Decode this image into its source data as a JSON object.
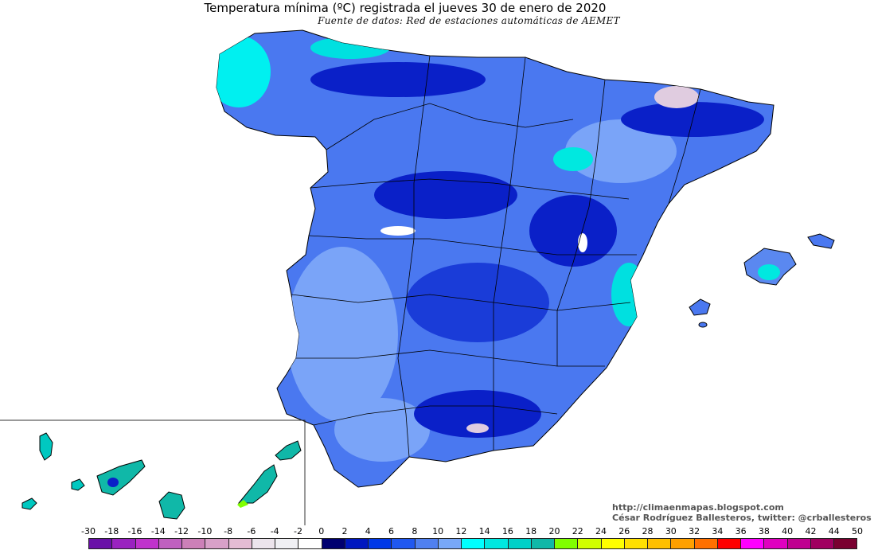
{
  "map": {
    "title": "Temperatura mínima (ºC) registrada el jueves 30 de enero de 2020",
    "subtitle": "Fuente de datos: Red de estaciones automáticas de AEMET",
    "credits": {
      "url": "http://climaenmapas.blogspot.com",
      "author": "César Rodríguez Ballesteros, twitter: @crballesteros"
    },
    "legend": {
      "unit": "ºC",
      "labels": [
        "-30",
        "-18",
        "-16",
        "-14",
        "-12",
        "-10",
        "-8",
        "-6",
        "-4",
        "-2",
        "0",
        "2",
        "4",
        "6",
        "8",
        "10",
        "12",
        "14",
        "16",
        "18",
        "20",
        "22",
        "24",
        "26",
        "28",
        "30",
        "32",
        "34",
        "36",
        "38",
        "40",
        "42",
        "44",
        "50"
      ],
      "colors": [
        "#6a10a8",
        "#9a22c0",
        "#c033cc",
        "#c060c0",
        "#cc80b8",
        "#d8a0c8",
        "#e4bcd4",
        "#ece4ec",
        "#f0f0f4",
        "#ffffff",
        "#000070",
        "#0018c0",
        "#0038e8",
        "#2058f0",
        "#5080f0",
        "#78a8f8",
        "#00ffff",
        "#00e8e0",
        "#00d0c8",
        "#10b8a8",
        "#80ff00",
        "#d0ff00",
        "#ffff00",
        "#ffe000",
        "#ffc000",
        "#ffa000",
        "#ff7000",
        "#ff0000",
        "#ff00ff",
        "#e000c0",
        "#c00090",
        "#a00060",
        "#7a0030"
      ]
    },
    "palette": {
      "sea": "#ffffff",
      "border": "#000000",
      "dominant_range_color": "#5080f0",
      "cold_core_color": "#0018c0",
      "coastal_mild_color": "#00ffff"
    }
  }
}
